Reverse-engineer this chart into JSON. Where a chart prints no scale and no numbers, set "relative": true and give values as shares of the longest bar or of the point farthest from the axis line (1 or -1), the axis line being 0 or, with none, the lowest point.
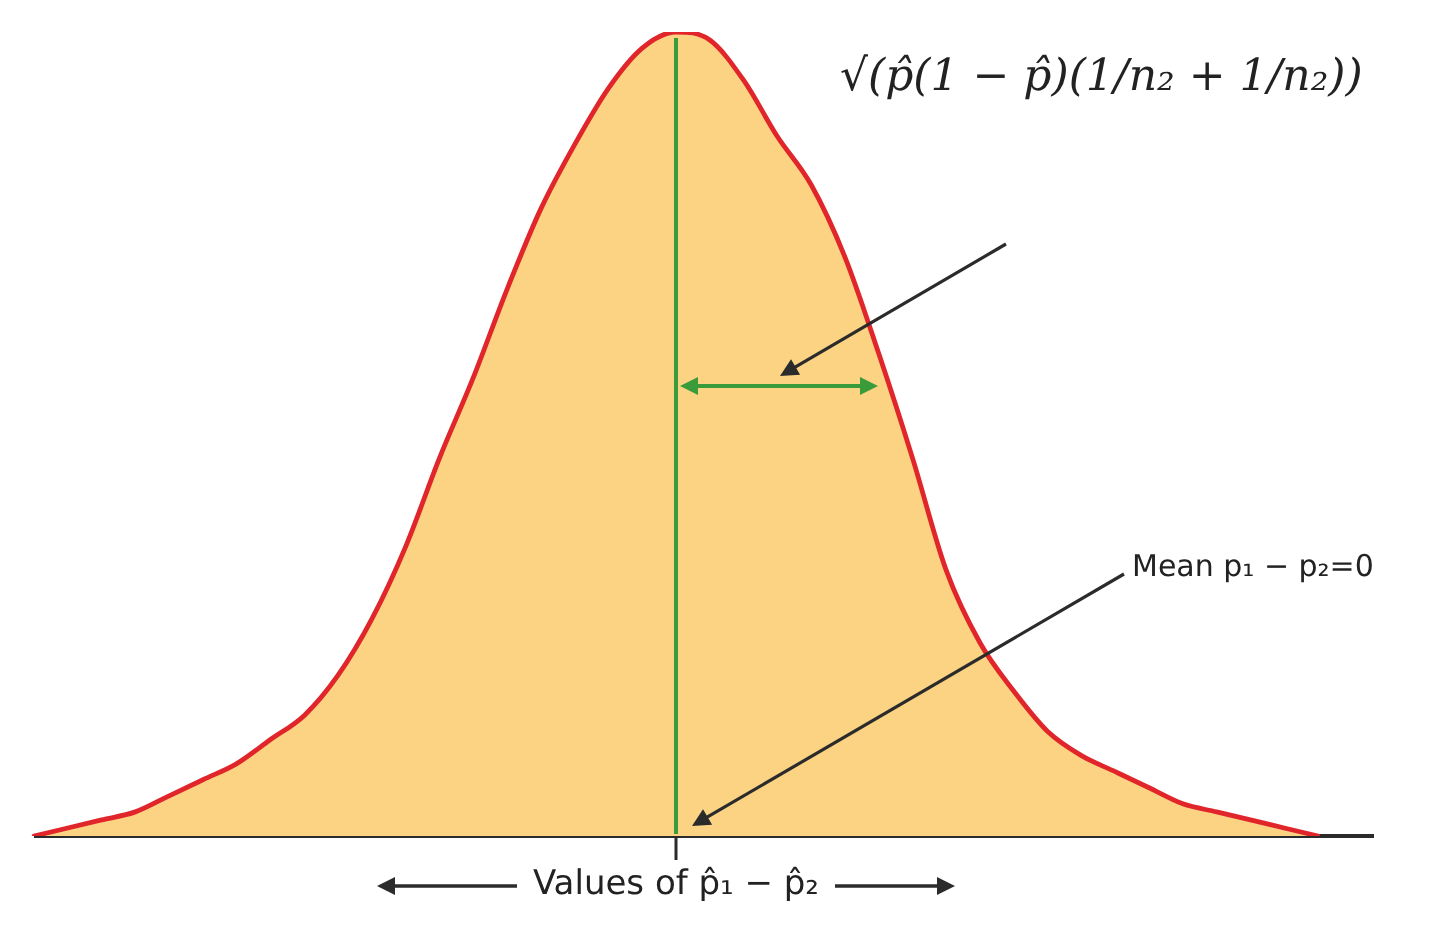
{
  "chart_data": {
    "type": "area",
    "relative": true,
    "xlabel": "Values of p̂₁ − p̂₂",
    "annotations": [
      "√(p̂(1 − p̂)(1/n₂ + 1/n₂))",
      "Mean p₁ − p₂=0"
    ],
    "categories": [
      null,
      null,
      null,
      null,
      null,
      null,
      null,
      null,
      null,
      null,
      null,
      null,
      null,
      null,
      null,
      null,
      null,
      null,
      null,
      null,
      null,
      null,
      null,
      null,
      null,
      null,
      null,
      null,
      null,
      null,
      null,
      null,
      null,
      null,
      null,
      null,
      null,
      null,
      null
    ],
    "color": "#fcd383",
    "values": [
      0,
      0.01,
      0.02,
      0.03,
      0.05,
      0.07,
      0.09,
      0.12,
      0.15,
      0.2,
      0.27,
      0.36,
      0.47,
      0.57,
      0.68,
      0.78,
      0.86,
      0.93,
      0.98,
      1,
      0.99,
      0.94,
      0.87,
      0.81,
      0.72,
      0.6,
      0.47,
      0.33,
      0.24,
      0.18,
      0.13,
      0.1,
      0.08,
      0.06,
      0.04,
      0.03,
      0.02,
      0.01,
      0
    ],
    "marker": "none"
  }
}
